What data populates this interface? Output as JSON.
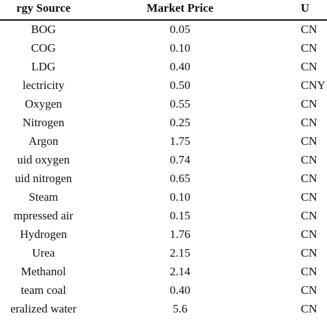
{
  "table": {
    "headers": [
      "rgy Source",
      "Market Price",
      "U"
    ],
    "rows": [
      {
        "source": "BOG",
        "price": "0.05",
        "unit": "CN"
      },
      {
        "source": "COG",
        "price": "0.10",
        "unit": "CN"
      },
      {
        "source": "LDG",
        "price": "0.40",
        "unit": "CN"
      },
      {
        "source": "lectricity",
        "price": "0.50",
        "unit": "CNY"
      },
      {
        "source": "Oxygen",
        "price": "0.55",
        "unit": "CN"
      },
      {
        "source": "Nitrogen",
        "price": "0.25",
        "unit": "CN"
      },
      {
        "source": "Argon",
        "price": "1.75",
        "unit": "CN"
      },
      {
        "source": "uid oxygen",
        "price": "0.74",
        "unit": "CN"
      },
      {
        "source": "uid nitrogen",
        "price": "0.65",
        "unit": "CN"
      },
      {
        "source": "Steam",
        "price": "0.10",
        "unit": "CN"
      },
      {
        "source": "mpressed air",
        "price": "0.15",
        "unit": "CN"
      },
      {
        "source": "Hydrogen",
        "price": "1.76",
        "unit": "CN"
      },
      {
        "source": "Urea",
        "price": "2.15",
        "unit": "CN"
      },
      {
        "source": "Methanol",
        "price": "2.14",
        "unit": "CN"
      },
      {
        "source": "team coal",
        "price": "0.40",
        "unit": "CN"
      },
      {
        "source": "eralized water",
        "price": "5.6",
        "unit": "CN"
      }
    ]
  }
}
